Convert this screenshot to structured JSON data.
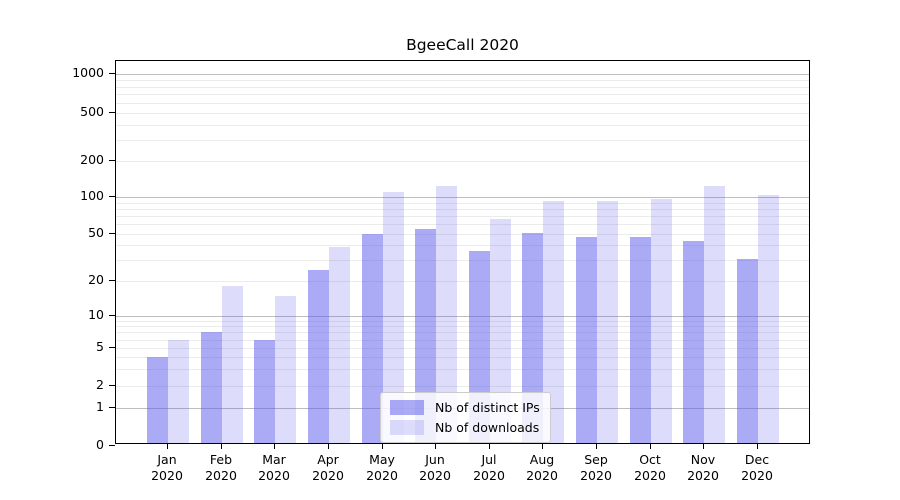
{
  "chart_data": {
    "type": "bar",
    "title": "BgeeCall 2020",
    "y_scale": "symlog",
    "grid": true,
    "legend_position": "lower center",
    "ylim": [
      0,
      1000
    ],
    "y_axis_ticks": [
      0,
      1,
      2,
      5,
      10,
      20,
      50,
      100,
      200,
      500,
      1000
    ],
    "categories": [
      "Jan 2020",
      "Feb 2020",
      "Mar 2020",
      "Apr 2020",
      "May 2020",
      "Jun 2020",
      "Jul 2020",
      "Aug 2020",
      "Sep 2020",
      "Oct 2020",
      "Nov 2020",
      "Dec 2020"
    ],
    "series": [
      {
        "name": "Nb of distinct IPs",
        "color": "rgba(85,85,235,0.5)",
        "values": [
          4,
          7,
          6,
          25,
          50,
          55,
          36,
          51,
          47,
          47,
          44,
          31
        ]
      },
      {
        "name": "Nb of downloads",
        "color": "rgba(85,85,235,0.2)",
        "values": [
          6,
          18,
          15,
          39,
          110,
          123,
          66,
          93,
          93,
          97,
          123,
          104
        ]
      }
    ],
    "colors": {
      "bar_base": "#5555eb",
      "grid_minor": "#ebebeb",
      "grid_major": "#bdbdbd",
      "axis": "#000000",
      "legend_border": "#cccccc"
    }
  }
}
